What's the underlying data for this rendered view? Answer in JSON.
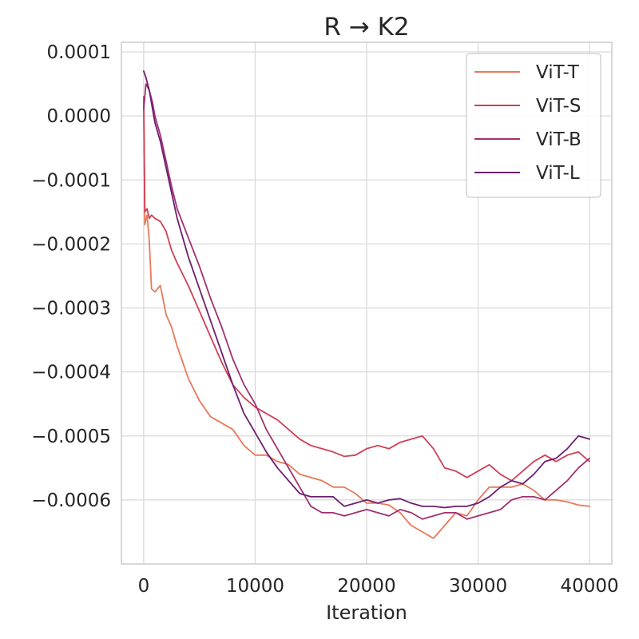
{
  "chart_data": {
    "type": "line",
    "title": "R → K2",
    "xlabel": "Iteration",
    "ylabel": "",
    "xlim": [
      -2000,
      42000
    ],
    "ylim": [
      -0.0007,
      0.000115
    ],
    "xticks": [
      0,
      10000,
      20000,
      30000,
      40000
    ],
    "xtick_labels": [
      "0",
      "10000",
      "20000",
      "30000",
      "40000"
    ],
    "yticks": [
      0.0001,
      0.0,
      -0.0001,
      -0.0002,
      -0.0003,
      -0.0004,
      -0.0005,
      -0.0006
    ],
    "ytick_labels": [
      "0.0001",
      "0.0000",
      "−0.0001",
      "−0.0002",
      "−0.0003",
      "−0.0004",
      "−0.0005",
      "−0.0006"
    ],
    "grid": true,
    "legend_position": "top-right",
    "series": [
      {
        "name": "ViT-T",
        "color": "#e8795a",
        "x": [
          0,
          100,
          300,
          500,
          700,
          1000,
          1500,
          2000,
          2500,
          3000,
          3500,
          4000,
          5000,
          6000,
          7000,
          8000,
          9000,
          10000,
          11000,
          12000,
          13000,
          14000,
          15000,
          16000,
          17000,
          18000,
          19000,
          20000,
          21000,
          22000,
          23000,
          24000,
          25000,
          26000,
          27000,
          28000,
          29000,
          30000,
          31000,
          32000,
          33000,
          34000,
          35000,
          36000,
          37000,
          38000,
          39000,
          40000
        ],
        "y": [
          3e-05,
          -0.00017,
          -0.000155,
          -0.000195,
          -0.00027,
          -0.000275,
          -0.000265,
          -0.00031,
          -0.00033,
          -0.00036,
          -0.000385,
          -0.00041,
          -0.000445,
          -0.00047,
          -0.00048,
          -0.00049,
          -0.000515,
          -0.00053,
          -0.00053,
          -0.00054,
          -0.000545,
          -0.00056,
          -0.000565,
          -0.00057,
          -0.00058,
          -0.00058,
          -0.00059,
          -0.000605,
          -0.000605,
          -0.000608,
          -0.00062,
          -0.00064,
          -0.00065,
          -0.00066,
          -0.00064,
          -0.00062,
          -0.000625,
          -0.0006,
          -0.00058,
          -0.00058,
          -0.00058,
          -0.000575,
          -0.000585,
          -0.0006,
          -0.0006,
          -0.000603,
          -0.000608,
          -0.00061
        ]
      },
      {
        "name": "ViT-S",
        "color": "#cf4154",
        "x": [
          0,
          100,
          300,
          500,
          700,
          1000,
          1500,
          2000,
          2500,
          3000,
          4000,
          5000,
          6000,
          7000,
          8000,
          9000,
          10000,
          11000,
          12000,
          13000,
          14000,
          15000,
          16000,
          17000,
          18000,
          19000,
          20000,
          21000,
          22000,
          23000,
          24000,
          25000,
          26000,
          27000,
          28000,
          29000,
          30000,
          31000,
          32000,
          33000,
          34000,
          35000,
          36000,
          37000,
          38000,
          39000,
          40000
        ],
        "y": [
          3e-05,
          -0.00015,
          -0.000145,
          -0.00016,
          -0.000155,
          -0.00016,
          -0.000165,
          -0.00018,
          -0.00021,
          -0.00023,
          -0.000265,
          -0.000305,
          -0.000345,
          -0.000385,
          -0.00042,
          -0.00044,
          -0.000455,
          -0.000465,
          -0.000475,
          -0.00049,
          -0.000505,
          -0.000515,
          -0.00052,
          -0.000525,
          -0.000532,
          -0.00053,
          -0.00052,
          -0.000515,
          -0.00052,
          -0.00051,
          -0.000505,
          -0.0005,
          -0.00052,
          -0.00055,
          -0.000555,
          -0.000565,
          -0.000555,
          -0.000545,
          -0.00056,
          -0.00057,
          -0.000555,
          -0.00054,
          -0.00053,
          -0.00054,
          -0.00053,
          -0.000525,
          -0.00054
        ]
      },
      {
        "name": "ViT-B",
        "color": "#a1306f",
        "x": [
          0,
          200,
          500,
          800,
          1000,
          1500,
          2000,
          2500,
          3000,
          4000,
          5000,
          6000,
          7000,
          8000,
          9000,
          10000,
          11000,
          12000,
          13000,
          14000,
          15000,
          16000,
          17000,
          18000,
          19000,
          20000,
          21000,
          22000,
          23000,
          24000,
          25000,
          26000,
          27000,
          28000,
          29000,
          30000,
          31000,
          32000,
          33000,
          34000,
          35000,
          36000,
          37000,
          38000,
          39000,
          40000
        ],
        "y": [
          1e-05,
          5e-05,
          4e-05,
          2e-05,
          0.0,
          -3e-05,
          -7e-05,
          -0.00011,
          -0.000145,
          -0.00019,
          -0.000235,
          -0.000285,
          -0.00033,
          -0.00038,
          -0.00042,
          -0.00045,
          -0.00049,
          -0.00052,
          -0.00055,
          -0.00058,
          -0.00061,
          -0.00062,
          -0.00062,
          -0.000625,
          -0.00062,
          -0.000615,
          -0.00062,
          -0.000625,
          -0.000615,
          -0.00062,
          -0.00063,
          -0.000625,
          -0.00062,
          -0.00062,
          -0.00063,
          -0.000625,
          -0.00062,
          -0.000615,
          -0.0006,
          -0.000595,
          -0.000595,
          -0.0006,
          -0.000585,
          -0.00057,
          -0.00055,
          -0.000535
        ]
      },
      {
        "name": "ViT-L",
        "color": "#6b1f6f",
        "x": [
          0,
          200,
          500,
          800,
          1000,
          1500,
          2000,
          2500,
          3000,
          4000,
          5000,
          6000,
          7000,
          8000,
          9000,
          10000,
          11000,
          12000,
          13000,
          14000,
          15000,
          16000,
          17000,
          18000,
          19000,
          20000,
          21000,
          22000,
          23000,
          24000,
          25000,
          26000,
          27000,
          28000,
          29000,
          30000,
          31000,
          32000,
          33000,
          34000,
          35000,
          36000,
          37000,
          38000,
          39000,
          40000
        ],
        "y": [
          7e-05,
          6e-05,
          4e-05,
          1e-05,
          -1e-05,
          -4e-05,
          -8e-05,
          -0.00012,
          -0.00016,
          -0.00022,
          -0.00027,
          -0.00032,
          -0.00037,
          -0.00042,
          -0.000465,
          -0.000495,
          -0.000525,
          -0.00055,
          -0.00057,
          -0.00059,
          -0.000595,
          -0.000595,
          -0.000595,
          -0.00061,
          -0.000605,
          -0.0006,
          -0.000605,
          -0.0006,
          -0.000598,
          -0.000605,
          -0.00061,
          -0.00061,
          -0.000612,
          -0.00061,
          -0.00061,
          -0.000605,
          -0.000595,
          -0.00058,
          -0.00057,
          -0.000575,
          -0.00056,
          -0.00054,
          -0.000535,
          -0.00052,
          -0.0005,
          -0.000505
        ]
      }
    ]
  }
}
